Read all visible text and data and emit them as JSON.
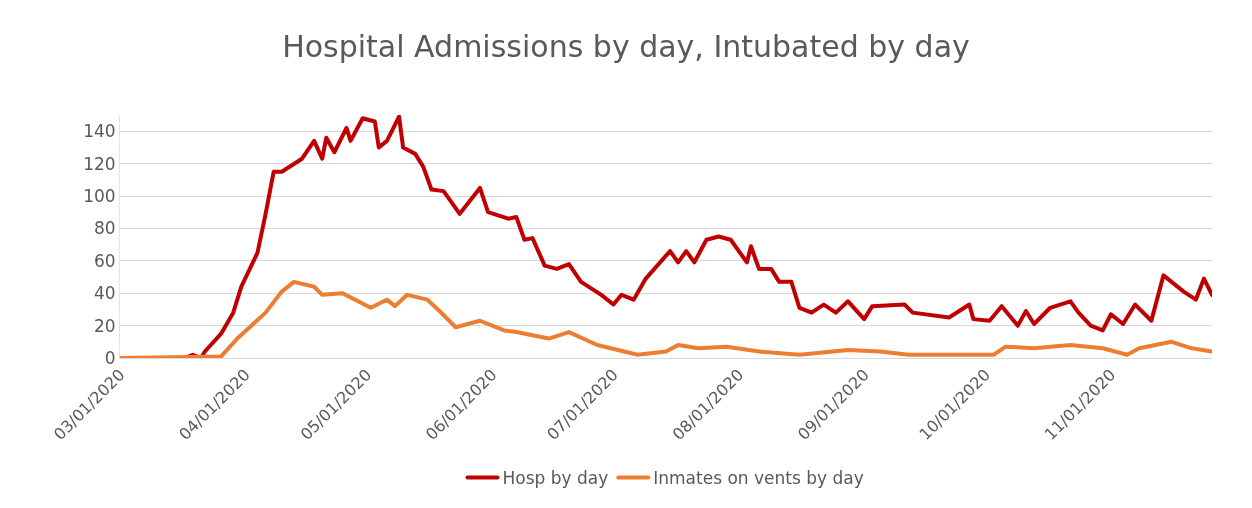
{
  "chart_data": {
    "type": "line",
    "title": "Hospital Admissions by day, Intubated by day",
    "xlim": [
      "2020-03-01",
      "2020-11-26"
    ],
    "xticks": [
      {
        "value": "2020-03-01",
        "label": "03/01/2020"
      },
      {
        "value": "2020-04-01",
        "label": "04/01/2020"
      },
      {
        "value": "2020-05-01",
        "label": "05/01/2020"
      },
      {
        "value": "2020-06-01",
        "label": "06/01/2020"
      },
      {
        "value": "2020-07-01",
        "label": "07/01/2020"
      },
      {
        "value": "2020-08-01",
        "label": "08/01/2020"
      },
      {
        "value": "2020-09-01",
        "label": "09/01/2020"
      },
      {
        "value": "2020-10-01",
        "label": "10/01/2020"
      },
      {
        "value": "2020-11-01",
        "label": "11/01/2020"
      }
    ],
    "ylim": [
      0,
      150
    ],
    "yticks": [
      0,
      20,
      40,
      60,
      80,
      100,
      120,
      140
    ],
    "grid": "y",
    "legend": "bottom",
    "marker": "none",
    "line_style": "solid",
    "series": [
      {
        "name": "Hosp by day",
        "color": "#c00000",
        "x": [
          "2020-03-01",
          "2020-03-17",
          "2020-03-19",
          "2020-03-21",
          "2020-03-22",
          "2020-03-26",
          "2020-03-29",
          "2020-03-31",
          "2020-04-04",
          "2020-04-06",
          "2020-04-08",
          "2020-04-10",
          "2020-04-15",
          "2020-04-18",
          "2020-04-20",
          "2020-04-21",
          "2020-04-23",
          "2020-04-26",
          "2020-04-27",
          "2020-04-30",
          "2020-05-03",
          "2020-05-04",
          "2020-05-06",
          "2020-05-09",
          "2020-05-10",
          "2020-05-13",
          "2020-05-15",
          "2020-05-17",
          "2020-05-20",
          "2020-05-24",
          "2020-05-29",
          "2020-05-31",
          "2020-06-05",
          "2020-06-07",
          "2020-06-09",
          "2020-06-11",
          "2020-06-14",
          "2020-06-17",
          "2020-06-20",
          "2020-06-23",
          "2020-06-28",
          "2020-07-01",
          "2020-07-03",
          "2020-07-06",
          "2020-07-09",
          "2020-07-15",
          "2020-07-17",
          "2020-07-19",
          "2020-07-21",
          "2020-07-24",
          "2020-07-27",
          "2020-07-30",
          "2020-08-03",
          "2020-08-04",
          "2020-08-06",
          "2020-08-09",
          "2020-08-11",
          "2020-08-14",
          "2020-08-16",
          "2020-08-19",
          "2020-08-22",
          "2020-08-25",
          "2020-08-28",
          "2020-09-01",
          "2020-09-03",
          "2020-09-11",
          "2020-09-13",
          "2020-09-22",
          "2020-09-27",
          "2020-09-28",
          "2020-10-02",
          "2020-10-05",
          "2020-10-09",
          "2020-10-11",
          "2020-10-13",
          "2020-10-17",
          "2020-10-22",
          "2020-10-24",
          "2020-10-27",
          "2020-10-30",
          "2020-11-01",
          "2020-11-04",
          "2020-11-07",
          "2020-11-11",
          "2020-11-14",
          "2020-11-16",
          "2020-11-19",
          "2020-11-22",
          "2020-11-24",
          "2020-11-26"
        ],
        "values": [
          0,
          0,
          2,
          0,
          4,
          15,
          28,
          44,
          65,
          89,
          115,
          115,
          123,
          134,
          123,
          136,
          127,
          142,
          134,
          148,
          146,
          130,
          134,
          149,
          130,
          126,
          118,
          104,
          103,
          89,
          105,
          90,
          86,
          87,
          73,
          74,
          57,
          55,
          58,
          47,
          39,
          33,
          39,
          36,
          49,
          66,
          59,
          66,
          59,
          73,
          75,
          73,
          59,
          69,
          55,
          55,
          47,
          47,
          31,
          28,
          33,
          28,
          35,
          24,
          32,
          33,
          28,
          25,
          33,
          24,
          23,
          32,
          20,
          29,
          21,
          31,
          35,
          28,
          20,
          17,
          27,
          21,
          33,
          23,
          51,
          47,
          41,
          36,
          49,
          39
        ]
      },
      {
        "name": "Inmates on vents by day",
        "color": "#ed7d31",
        "x": [
          "2020-03-01",
          "2020-03-26",
          "2020-03-30",
          "2020-04-06",
          "2020-04-10",
          "2020-04-13",
          "2020-04-18",
          "2020-04-20",
          "2020-04-25",
          "2020-05-02",
          "2020-05-06",
          "2020-05-08",
          "2020-05-11",
          "2020-05-16",
          "2020-05-19",
          "2020-05-23",
          "2020-05-29",
          "2020-06-04",
          "2020-06-07",
          "2020-06-15",
          "2020-06-20",
          "2020-06-27",
          "2020-07-07",
          "2020-07-14",
          "2020-07-17",
          "2020-07-22",
          "2020-07-29",
          "2020-08-06",
          "2020-08-16",
          "2020-08-28",
          "2020-09-05",
          "2020-09-12",
          "2020-10-03",
          "2020-10-06",
          "2020-10-13",
          "2020-10-22",
          "2020-10-30",
          "2020-11-05",
          "2020-11-08",
          "2020-11-16",
          "2020-11-21",
          "2020-11-26"
        ],
        "values": [
          0,
          1,
          12,
          28,
          41,
          47,
          44,
          39,
          40,
          31,
          36,
          32,
          39,
          36,
          29,
          19,
          23,
          17,
          16,
          12,
          16,
          8,
          2,
          4,
          8,
          6,
          7,
          4,
          2,
          5,
          4,
          2,
          2,
          7,
          6,
          8,
          6,
          2,
          6,
          10,
          6,
          4
        ]
      }
    ]
  }
}
